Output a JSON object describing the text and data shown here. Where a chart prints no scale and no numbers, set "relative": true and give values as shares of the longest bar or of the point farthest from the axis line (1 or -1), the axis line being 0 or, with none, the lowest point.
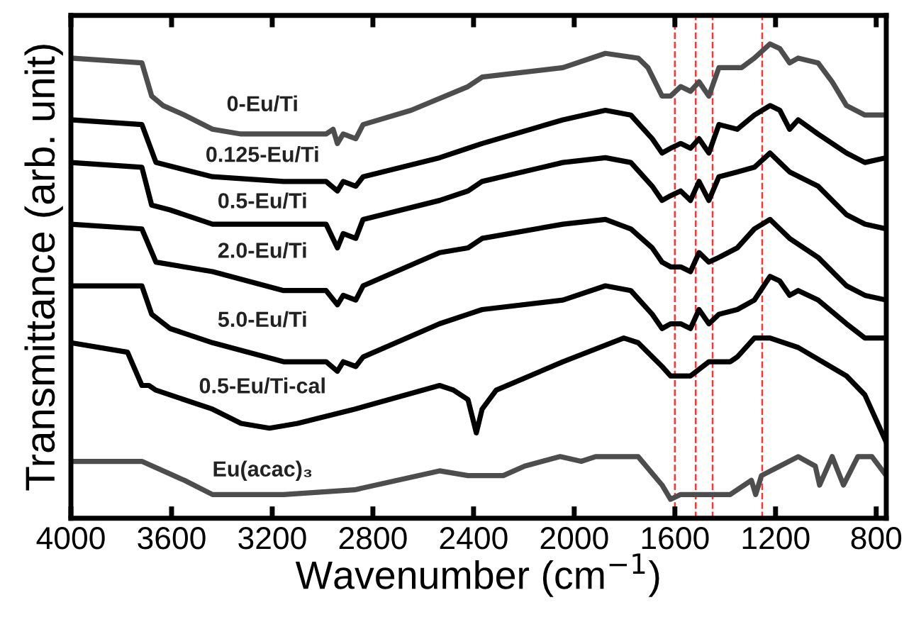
{
  "chart_data": {
    "type": "line",
    "relative": true,
    "xlabel": "Wavenumber (cm$^{−1}$)",
    "ylabel": "Transmittance (arb. unit)",
    "xlim": [
      4000,
      760
    ],
    "xticks": [
      4000,
      3600,
      3200,
      2800,
      2400,
      2000,
      1600,
      1200,
      800
    ],
    "grid": false,
    "legend": false,
    "marker": "none",
    "line_style": "solid",
    "series": [
      {
        "name": "0-Eu/Ti",
        "color": "#4d4d4d",
        "x": [
          4000,
          3718,
          3679,
          3634,
          3549,
          3437,
          3324,
          3155,
          2986,
          2958,
          2941,
          2918,
          2868,
          2839,
          2648,
          2422,
          2366,
          2045,
          1876,
          1746,
          1707,
          1651,
          1617,
          1577,
          1538,
          1504,
          1465,
          1425,
          1335,
          1284,
          1222,
          1183,
          1144,
          1110,
          1031,
          975,
          918,
          845,
          760
        ],
        "values": [
          0.97,
          0.96,
          0.89,
          0.87,
          0.85,
          0.82,
          0.81,
          0.81,
          0.81,
          0.82,
          0.79,
          0.81,
          0.8,
          0.83,
          0.86,
          0.91,
          0.93,
          0.95,
          0.98,
          0.97,
          0.95,
          0.89,
          0.89,
          0.91,
          0.9,
          0.92,
          0.89,
          0.95,
          0.95,
          0.97,
          1.0,
          0.99,
          0.96,
          0.97,
          0.96,
          0.92,
          0.87,
          0.85,
          0.85
        ]
      },
      {
        "name": "0.125-Eu/Ti",
        "color": "#000000",
        "x": [
          4000,
          3718,
          3662,
          3437,
          3155,
          2986,
          2941,
          2918,
          2868,
          2839,
          2535,
          2422,
          2366,
          2045,
          1876,
          1775,
          1690,
          1651,
          1617,
          1577,
          1538,
          1504,
          1465,
          1425,
          1352,
          1284,
          1222,
          1183,
          1144,
          1110,
          1031,
          918,
          845,
          760
        ],
        "values": [
          0.84,
          0.83,
          0.75,
          0.72,
          0.71,
          0.71,
          0.69,
          0.71,
          0.7,
          0.72,
          0.76,
          0.78,
          0.79,
          0.84,
          0.86,
          0.85,
          0.8,
          0.77,
          0.78,
          0.79,
          0.78,
          0.8,
          0.77,
          0.83,
          0.82,
          0.85,
          0.87,
          0.86,
          0.82,
          0.84,
          0.81,
          0.77,
          0.75,
          0.76
        ]
      },
      {
        "name": "0.5-Eu/Ti",
        "color": "#000000",
        "x": [
          4000,
          3718,
          3679,
          3606,
          3437,
          3155,
          2986,
          2941,
          2918,
          2868,
          2839,
          2535,
          2422,
          2366,
          2045,
          1876,
          1775,
          1690,
          1651,
          1617,
          1577,
          1538,
          1504,
          1465,
          1425,
          1352,
          1284,
          1222,
          1183,
          1144,
          1031,
          918,
          845,
          760
        ],
        "values": [
          0.75,
          0.74,
          0.66,
          0.65,
          0.62,
          0.62,
          0.62,
          0.57,
          0.6,
          0.59,
          0.63,
          0.67,
          0.69,
          0.71,
          0.75,
          0.76,
          0.75,
          0.7,
          0.67,
          0.68,
          0.69,
          0.67,
          0.71,
          0.67,
          0.72,
          0.73,
          0.74,
          0.77,
          0.75,
          0.73,
          0.7,
          0.64,
          0.62,
          0.61
        ]
      },
      {
        "name": "2.0-Eu/Ti",
        "color": "#000000",
        "x": [
          4000,
          3718,
          3662,
          3437,
          3155,
          2986,
          2941,
          2918,
          2868,
          2839,
          2535,
          2422,
          2366,
          2045,
          1876,
          1775,
          1690,
          1651,
          1617,
          1577,
          1538,
          1521,
          1504,
          1465,
          1425,
          1352,
          1284,
          1222,
          1183,
          1144,
          1031,
          918,
          845,
          760
        ],
        "values": [
          0.62,
          0.61,
          0.54,
          0.52,
          0.48,
          0.48,
          0.45,
          0.47,
          0.46,
          0.49,
          0.56,
          0.57,
          0.59,
          0.62,
          0.63,
          0.61,
          0.57,
          0.54,
          0.53,
          0.53,
          0.52,
          0.54,
          0.56,
          0.54,
          0.55,
          0.57,
          0.61,
          0.63,
          0.61,
          0.59,
          0.55,
          0.49,
          0.47,
          0.46
        ]
      },
      {
        "name": "5.0-Eu/Ti",
        "color": "#000000",
        "x": [
          4000,
          3718,
          3679,
          3606,
          3437,
          3155,
          2986,
          2941,
          2918,
          2868,
          2839,
          2535,
          2422,
          2366,
          2045,
          1876,
          1775,
          1690,
          1651,
          1617,
          1577,
          1538,
          1504,
          1465,
          1425,
          1352,
          1284,
          1222,
          1183,
          1144,
          1110,
          1031,
          918,
          845,
          760
        ],
        "values": [
          0.49,
          0.49,
          0.43,
          0.4,
          0.37,
          0.33,
          0.33,
          0.31,
          0.33,
          0.32,
          0.34,
          0.41,
          0.43,
          0.44,
          0.46,
          0.49,
          0.48,
          0.43,
          0.4,
          0.41,
          0.41,
          0.4,
          0.44,
          0.41,
          0.43,
          0.44,
          0.46,
          0.51,
          0.5,
          0.47,
          0.48,
          0.46,
          0.41,
          0.38,
          0.38
        ]
      },
      {
        "name": "0.5-Eu/Ti-cal",
        "color": "#000000",
        "x": [
          4000,
          3775,
          3718,
          3690,
          3662,
          3437,
          3324,
          3211,
          3099,
          2873,
          2535,
          2479,
          2422,
          2389,
          2366,
          2310,
          2045,
          1803,
          1746,
          1651,
          1617,
          1538,
          1465,
          1380,
          1352,
          1284,
          1222,
          1110,
          918,
          845,
          760
        ],
        "values": [
          0.37,
          0.35,
          0.28,
          0.28,
          0.27,
          0.23,
          0.2,
          0.19,
          0.2,
          0.23,
          0.28,
          0.27,
          0.25,
          0.18,
          0.23,
          0.27,
          0.33,
          0.38,
          0.37,
          0.32,
          0.3,
          0.3,
          0.33,
          0.33,
          0.34,
          0.38,
          0.38,
          0.36,
          0.3,
          0.26,
          0.16
        ]
      },
      {
        "name": "Eu(acac)₃",
        "color": "#4d4d4d",
        "x": [
          4000,
          3718,
          3549,
          3437,
          3155,
          2873,
          2535,
          2422,
          2282,
          2197,
          2056,
          1972,
          1915,
          1803,
          1746,
          1651,
          1617,
          1577,
          1465,
          1380,
          1296,
          1279,
          1256,
          1183,
          1110,
          1042,
          1025,
          975,
          930,
          873,
          817,
          760
        ],
        "values": [
          0.12,
          0.12,
          0.08,
          0.05,
          0.05,
          0.06,
          0.1,
          0.09,
          0.09,
          0.11,
          0.13,
          0.12,
          0.13,
          0.13,
          0.13,
          0.07,
          0.04,
          0.05,
          0.05,
          0.05,
          0.08,
          0.05,
          0.09,
          0.11,
          0.13,
          0.11,
          0.07,
          0.13,
          0.07,
          0.13,
          0.13,
          0.09
        ]
      }
    ],
    "ref_lines": [
      {
        "axis": "x",
        "value": 1600,
        "color": "#ff3333",
        "line_style": "dashed"
      },
      {
        "axis": "x",
        "value": 1517,
        "color": "#ff3333",
        "line_style": "dashed"
      },
      {
        "axis": "x",
        "value": 1450,
        "color": "#ff3333",
        "line_style": "dashed"
      },
      {
        "axis": "x",
        "value": 1253,
        "color": "#ff3333",
        "line_style": "dashed"
      }
    ]
  }
}
